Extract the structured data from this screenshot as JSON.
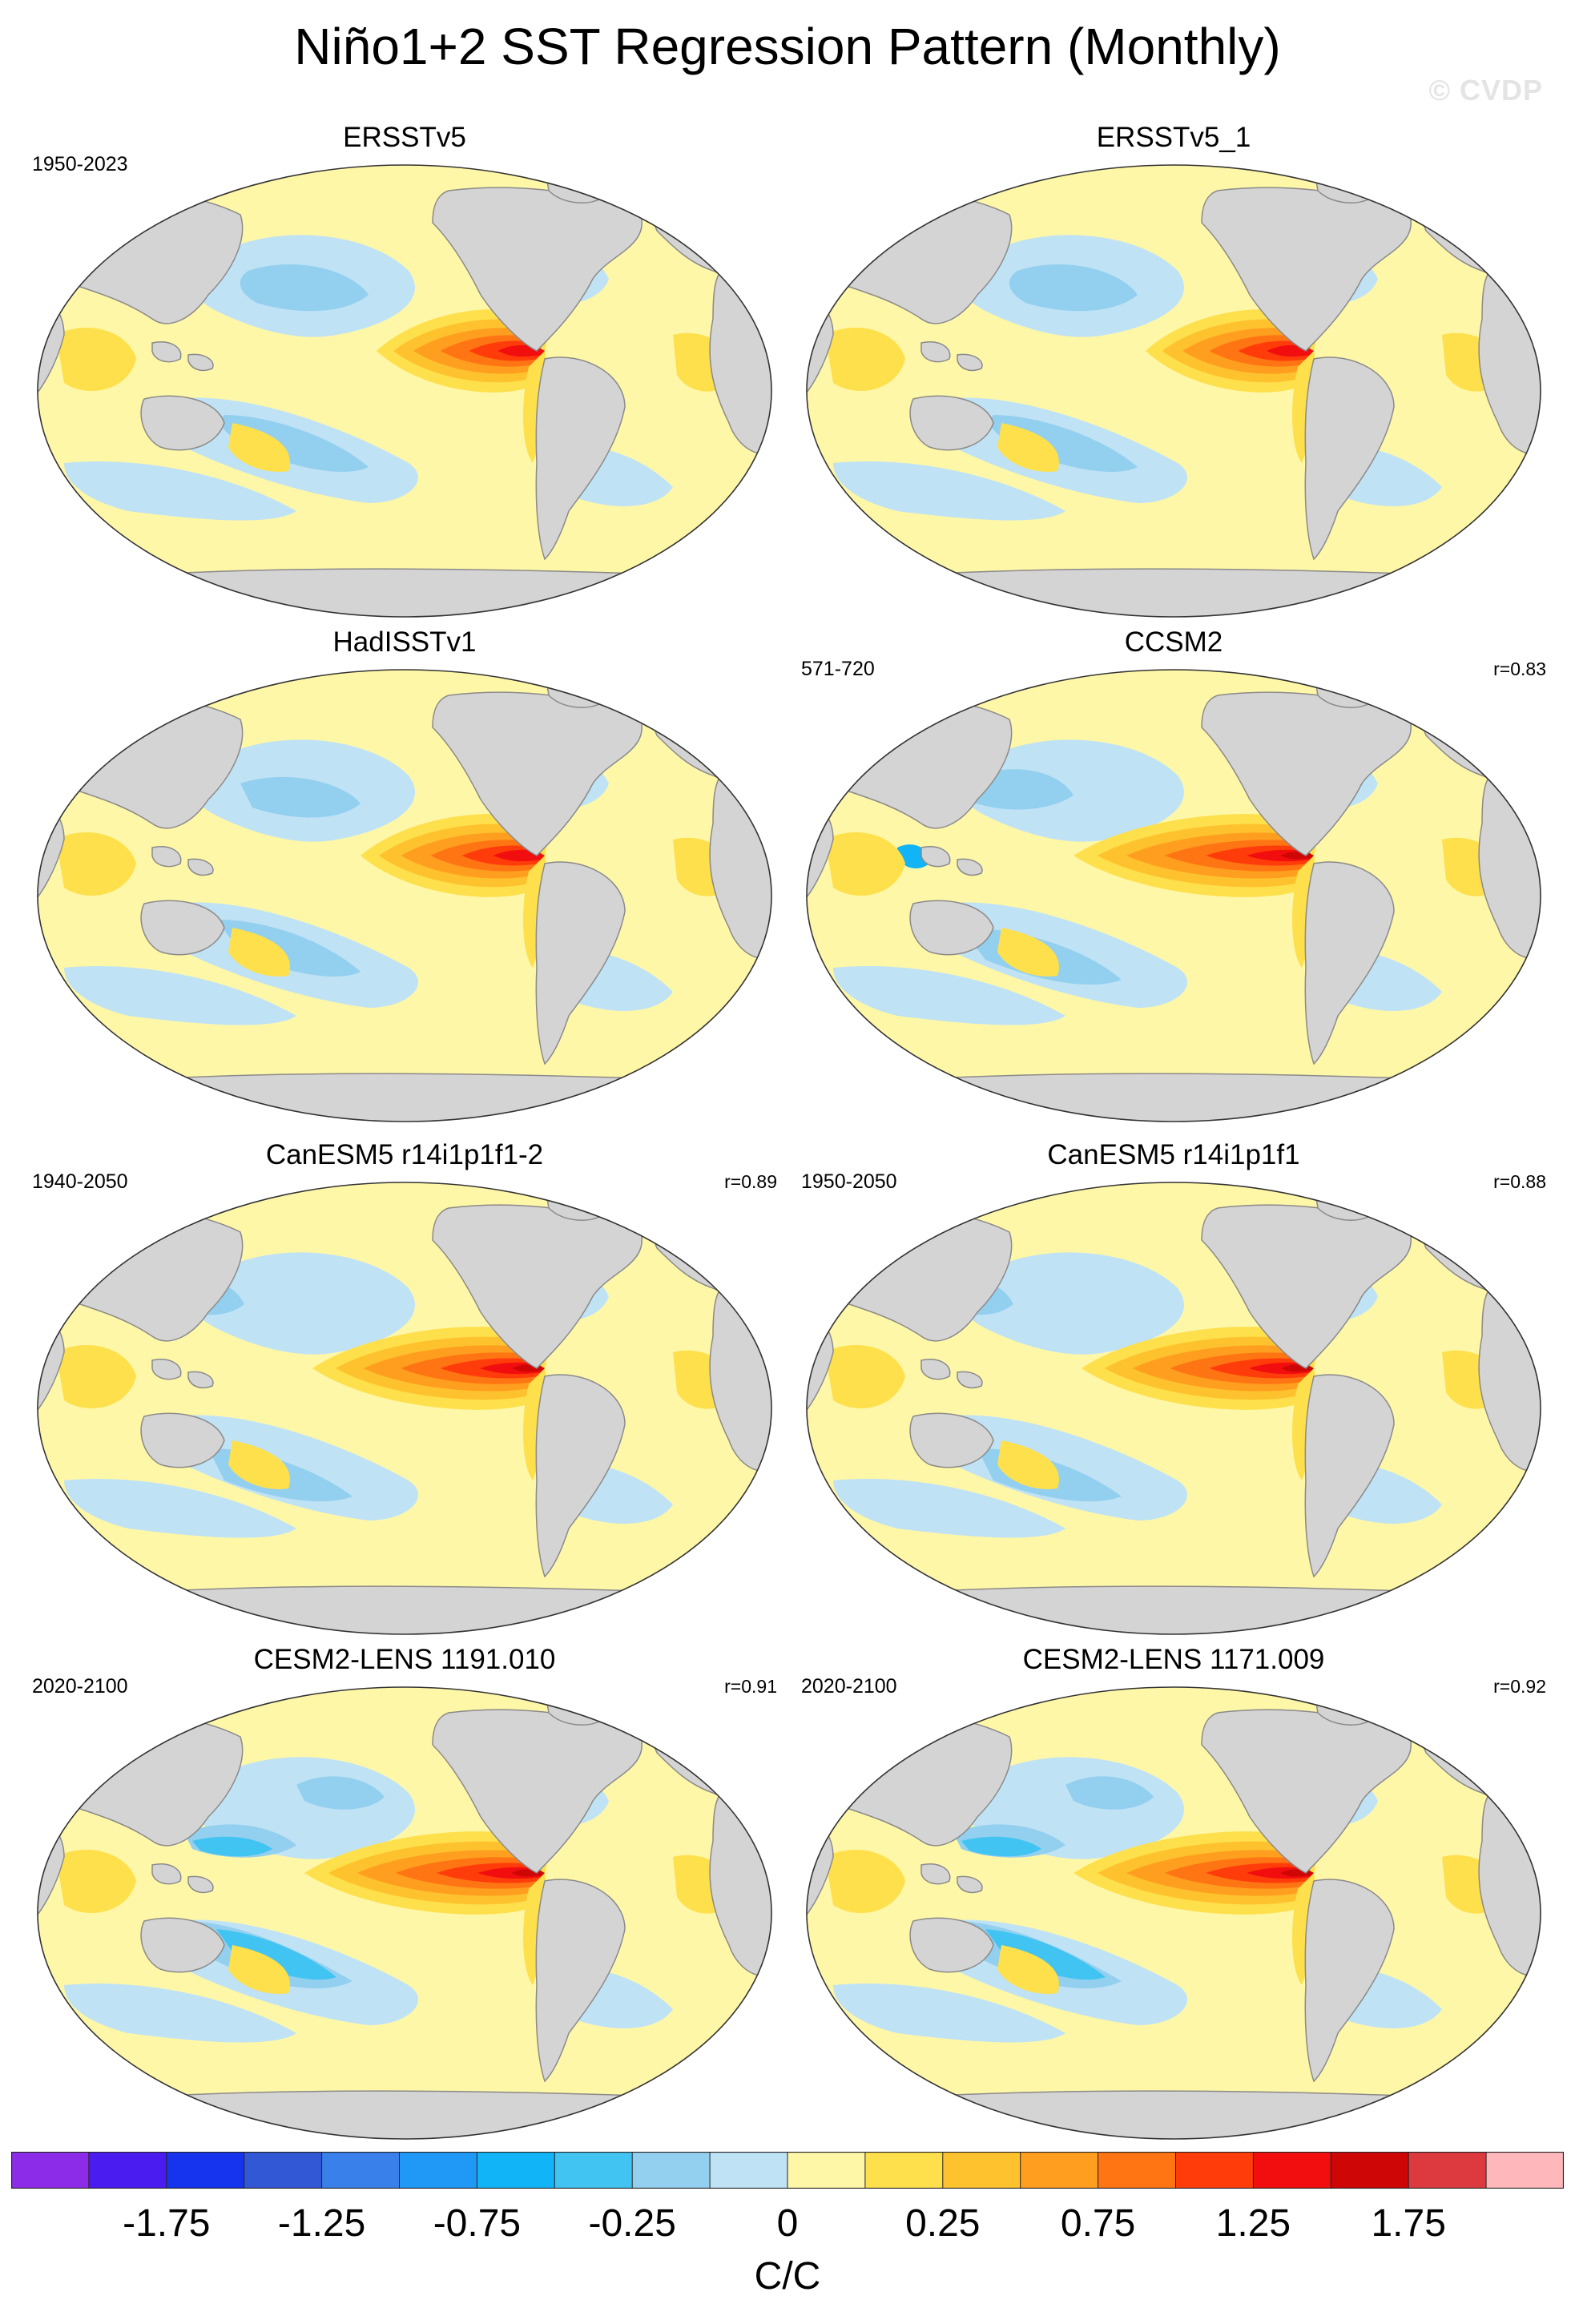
{
  "title": "Niño1+2 SST Regression Pattern (Monthly)",
  "watermark": "© CVDP",
  "panels": [
    {
      "title": "ERSSTv5",
      "period": "1950-2023",
      "r": "",
      "variant": 0
    },
    {
      "title": "ERSSTv5_1",
      "period": "",
      "r": "",
      "variant": 0
    },
    {
      "title": "HadISSTv1",
      "period": "",
      "r": "",
      "variant": 1
    },
    {
      "title": "CCSM2",
      "period": "571-720",
      "r": "r=0.83",
      "variant": 2
    },
    {
      "title": "CanESM5 r14i1p1f1-2",
      "period": "1940-2050",
      "r": "r=0.89",
      "variant": 3
    },
    {
      "title": "CanESM5 r14i1p1f1",
      "period": "1950-2050",
      "r": "r=0.88",
      "variant": 3
    },
    {
      "title": "CESM2-LENS 1191.010",
      "period": "2020-2100",
      "r": "r=0.91",
      "variant": 4
    },
    {
      "title": "CESM2-LENS 1171.009",
      "period": "2020-2100",
      "r": "r=0.92",
      "variant": 4
    }
  ],
  "colorbar": {
    "colors": [
      "#8c2be8",
      "#4a1cf0",
      "#1633ee",
      "#3358d6",
      "#3a80ea",
      "#1f99f5",
      "#11b4f6",
      "#41c4f2",
      "#93cfee",
      "#bfe2f5",
      "#fff7a8",
      "#fee04c",
      "#fec22e",
      "#ff9e1f",
      "#ff7413",
      "#ff3c0a",
      "#f20e0e",
      "#cf0606",
      "#dc3a3e",
      "#feb7bb"
    ],
    "labels": [
      "-1.75",
      "-1.25",
      "-0.75",
      "-0.25",
      "0",
      "0.25",
      "0.75",
      "1.25",
      "1.75"
    ],
    "units": "C/C"
  }
}
